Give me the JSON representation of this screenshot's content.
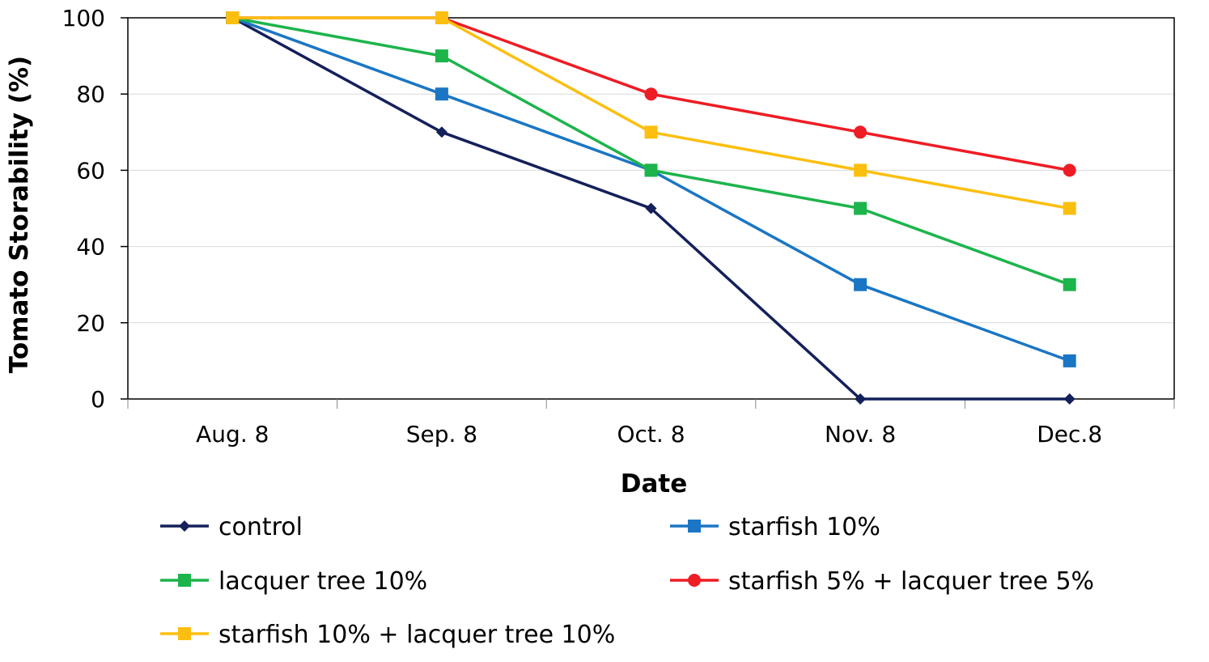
{
  "chart_data": {
    "type": "line",
    "xlabel": "Date",
    "ylabel": "Tomato Storability (%)",
    "categories": [
      "Aug. 8",
      "Sep. 8",
      "Oct. 8",
      "Nov. 8",
      "Dec.8"
    ],
    "ylim": [
      0,
      100
    ],
    "yticks": [
      "0",
      "20",
      "40",
      "60",
      "80",
      "100"
    ],
    "grid": "horizontal",
    "legend_position": "bottom",
    "series": [
      {
        "name": "control",
        "values": [
          100,
          70,
          50,
          0,
          0
        ],
        "color": "#14205a",
        "marker": "diamond"
      },
      {
        "name": "starfish 10%",
        "values": [
          100,
          80,
          60,
          30,
          10
        ],
        "color": "#1a76c4",
        "marker": "square"
      },
      {
        "name": "lacquer tree 10%",
        "values": [
          100,
          90,
          60,
          50,
          30
        ],
        "color": "#1db44c",
        "marker": "square"
      },
      {
        "name": "starfish 5% + lacquer tree 5%",
        "values": [
          100,
          100,
          80,
          70,
          60
        ],
        "color": "#ee1c24",
        "marker": "circle"
      },
      {
        "name": "starfish 10% + lacquer tree 10%",
        "values": [
          100,
          100,
          70,
          60,
          50
        ],
        "color": "#fcbf10",
        "marker": "square"
      }
    ]
  }
}
